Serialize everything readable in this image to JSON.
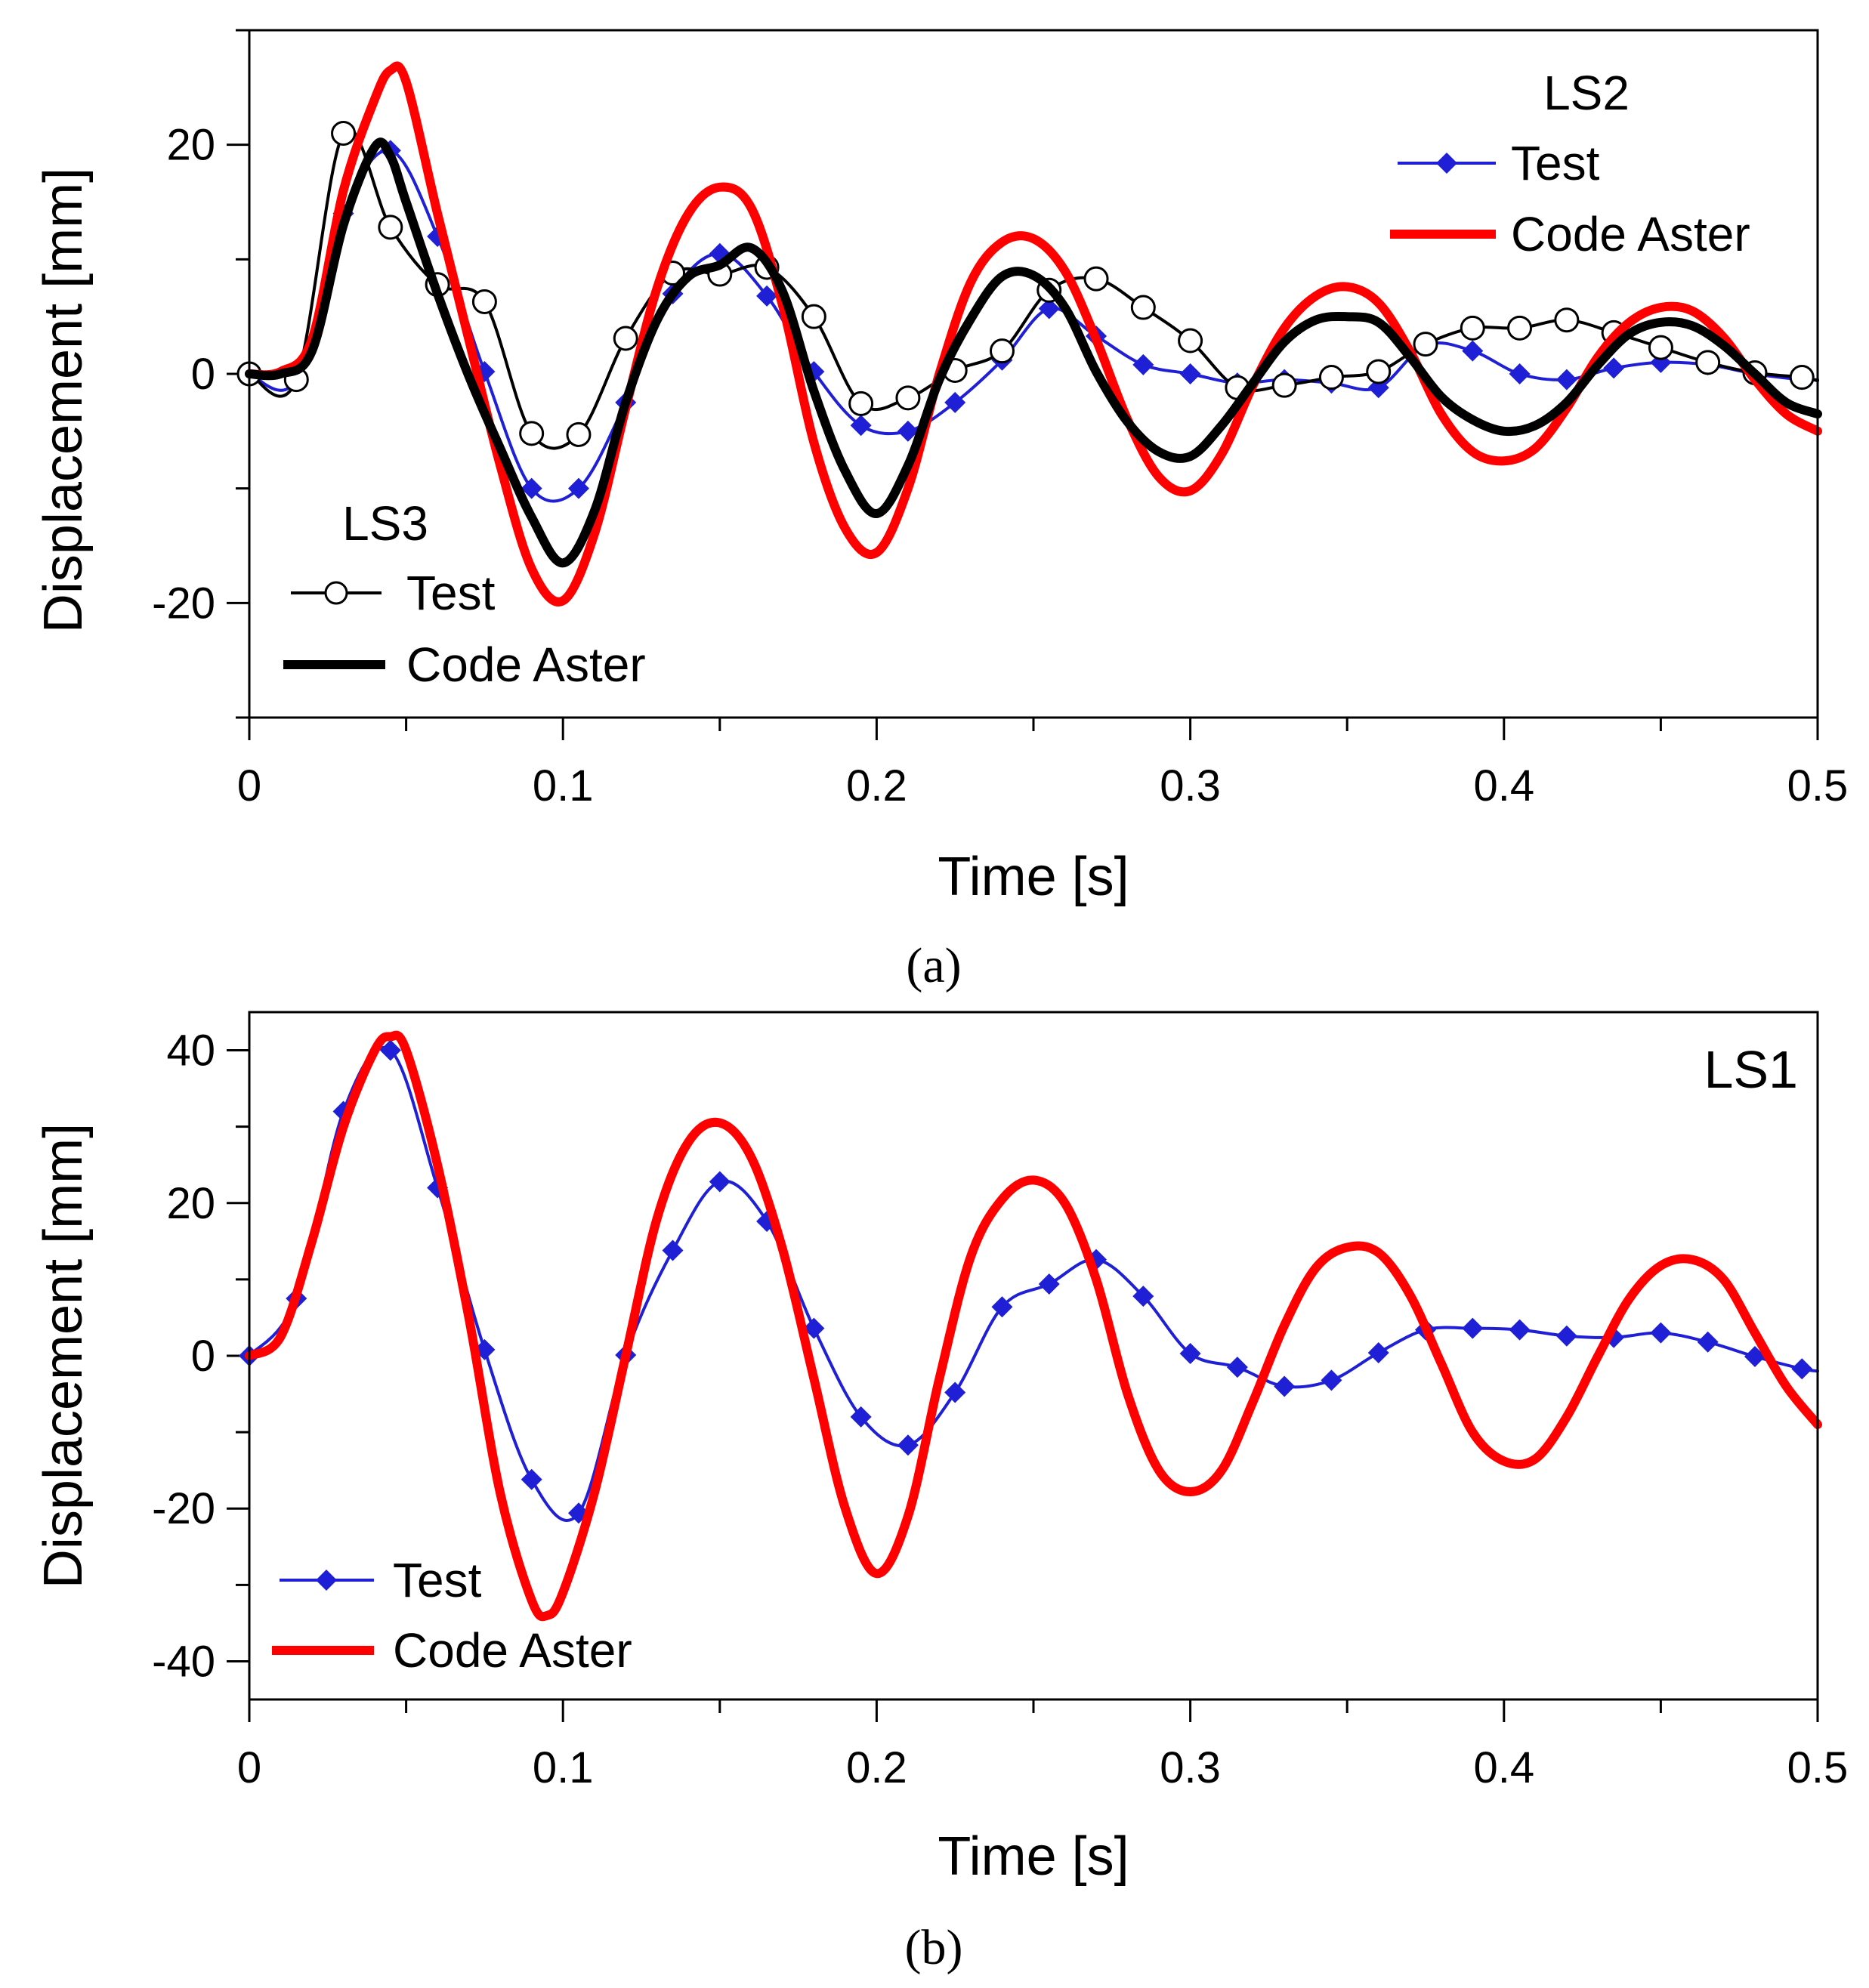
{
  "chart_data": [
    {
      "type": "line",
      "caption": "(a)",
      "xlabel": "Time  [s]",
      "ylabel": "Displacement  [mm]",
      "xlim": [
        0,
        0.5
      ],
      "ylim": [
        -30,
        30
      ],
      "xticks": [
        "0",
        "0.1",
        "0.2",
        "0.3",
        "0.4",
        "0.5"
      ],
      "yticks": [
        "20",
        "0",
        "-20"
      ],
      "legends": [
        {
          "group": "LS2",
          "entries": [
            "Test",
            "Code Aster"
          ]
        },
        {
          "group": "LS3",
          "entries": [
            "Test",
            "Code Aster"
          ]
        }
      ],
      "series": [
        {
          "name": "LS2 Test",
          "color": "#1f1fd6",
          "marker": "diamond",
          "x": [
            0,
            0.015,
            0.03,
            0.045,
            0.06,
            0.075,
            0.09,
            0.105,
            0.12,
            0.135,
            0.15,
            0.165,
            0.18,
            0.195,
            0.21,
            0.225,
            0.24,
            0.255,
            0.27,
            0.285,
            0.3,
            0.315,
            0.33,
            0.345,
            0.36,
            0.375,
            0.39,
            0.405,
            0.42,
            0.435,
            0.45,
            0.465,
            0.48,
            0.495,
            0.5
          ],
          "y": [
            0,
            -0.5,
            14,
            19.5,
            12,
            0.2,
            -10,
            -10,
            -2.5,
            7,
            10.5,
            6.8,
            0.2,
            -4.5,
            -5,
            -2.5,
            1.2,
            5.7,
            3.3,
            0.8,
            0,
            -0.8,
            -0.5,
            -0.8,
            -1.2,
            2.5,
            2,
            0,
            -0.5,
            0.5,
            1,
            0.8,
            0,
            -0.5,
            -0.5
          ]
        },
        {
          "name": "LS3 Test",
          "color": "#000000",
          "marker": "circle",
          "x": [
            0,
            0.015,
            0.03,
            0.045,
            0.06,
            0.075,
            0.09,
            0.105,
            0.12,
            0.135,
            0.15,
            0.165,
            0.18,
            0.195,
            0.21,
            0.225,
            0.24,
            0.255,
            0.27,
            0.285,
            0.3,
            0.315,
            0.33,
            0.345,
            0.36,
            0.375,
            0.39,
            0.405,
            0.42,
            0.435,
            0.45,
            0.465,
            0.48,
            0.495,
            0.5
          ],
          "y": [
            0,
            -0.5,
            21,
            12.8,
            7.8,
            6.3,
            -5.2,
            -5.3,
            3.1,
            8.8,
            8.7,
            9.3,
            5,
            -2.6,
            -2.1,
            0.3,
            2,
            7.3,
            8.3,
            5.8,
            2.9,
            -1.2,
            -1,
            -0.3,
            0.2,
            2.6,
            4,
            4,
            4.7,
            3.6,
            2.3,
            1,
            0.1,
            -0.3,
            -0.6
          ]
        },
        {
          "name": "LS2 Code Aster",
          "color": "#ff0000",
          "marker": "none",
          "x": [
            0,
            0.01,
            0.02,
            0.03,
            0.04,
            0.045,
            0.05,
            0.06,
            0.07,
            0.08,
            0.09,
            0.1,
            0.11,
            0.12,
            0.13,
            0.14,
            0.15,
            0.16,
            0.17,
            0.18,
            0.19,
            0.2,
            0.21,
            0.22,
            0.23,
            0.24,
            0.25,
            0.26,
            0.27,
            0.28,
            0.29,
            0.3,
            0.31,
            0.32,
            0.33,
            0.34,
            0.35,
            0.36,
            0.37,
            0.38,
            0.39,
            0.4,
            0.41,
            0.42,
            0.43,
            0.44,
            0.45,
            0.46,
            0.47,
            0.48,
            0.49,
            0.5
          ],
          "y": [
            0,
            0.2,
            3,
            16,
            24,
            26.5,
            25.5,
            14,
            3,
            -8,
            -17,
            -19.8,
            -14,
            -3,
            7.5,
            14,
            16.3,
            14.5,
            6,
            -6,
            -13.5,
            -15.6,
            -10,
            0,
            8,
            11.5,
            11.8,
            9,
            3,
            -4,
            -9,
            -10.2,
            -7,
            -1,
            4,
            6.8,
            7.6,
            6.2,
            2,
            -3.5,
            -6.8,
            -7.6,
            -6.5,
            -3,
            1.5,
            4.5,
            5.8,
            5.5,
            3.2,
            -0.5,
            -3.5,
            -5
          ]
        },
        {
          "name": "LS3 Code Aster",
          "color": "#000000",
          "marker": "none",
          "x": [
            0,
            0.01,
            0.02,
            0.03,
            0.04,
            0.045,
            0.05,
            0.06,
            0.07,
            0.08,
            0.09,
            0.1,
            0.11,
            0.12,
            0.13,
            0.14,
            0.15,
            0.16,
            0.17,
            0.18,
            0.19,
            0.2,
            0.21,
            0.22,
            0.23,
            0.24,
            0.25,
            0.26,
            0.27,
            0.28,
            0.29,
            0.3,
            0.31,
            0.32,
            0.33,
            0.34,
            0.35,
            0.36,
            0.37,
            0.38,
            0.39,
            0.4,
            0.41,
            0.42,
            0.43,
            0.44,
            0.45,
            0.46,
            0.47,
            0.48,
            0.49,
            0.5
          ],
          "y": [
            0,
            0,
            2,
            13,
            19.8,
            19,
            15,
            7,
            -0.2,
            -6.5,
            -12.5,
            -16.5,
            -12,
            -2.5,
            4.7,
            8.5,
            9.5,
            11,
            7.2,
            -1.5,
            -8.5,
            -12.2,
            -8,
            -0.5,
            4.8,
            8.5,
            8.6,
            5.8,
            0.2,
            -4.2,
            -6.8,
            -7.2,
            -4.5,
            -0.8,
            2.8,
            4.7,
            5,
            4.5,
            1.5,
            -2,
            -4,
            -5,
            -4.5,
            -2.5,
            0.8,
            3.5,
            4.5,
            4.2,
            2.5,
            0,
            -2.5,
            -3.5
          ]
        }
      ]
    },
    {
      "type": "line",
      "caption": "(b)",
      "xlabel": "Time  [s]",
      "ylabel": "Displacement  [mm]",
      "xlim": [
        0,
        0.5
      ],
      "ylim": [
        -45,
        45
      ],
      "xticks": [
        "0",
        "0.1",
        "0.2",
        "0.3",
        "0.4",
        "0.5"
      ],
      "yticks": [
        "40",
        "20",
        "0",
        "-20",
        "-40"
      ],
      "legends": [
        {
          "group": "LS1",
          "entries": [
            "Test",
            "Code Aster"
          ]
        }
      ],
      "series": [
        {
          "name": "LS1 Test",
          "color": "#1f1fd6",
          "marker": "diamond",
          "x": [
            0,
            0.015,
            0.03,
            0.045,
            0.06,
            0.075,
            0.09,
            0.105,
            0.12,
            0.135,
            0.15,
            0.165,
            0.18,
            0.195,
            0.21,
            0.225,
            0.24,
            0.255,
            0.27,
            0.285,
            0.3,
            0.315,
            0.33,
            0.345,
            0.36,
            0.375,
            0.39,
            0.405,
            0.42,
            0.435,
            0.45,
            0.465,
            0.48,
            0.495,
            0.5
          ],
          "y": [
            0,
            7.5,
            32,
            40,
            22,
            0.8,
            -16.2,
            -20.6,
            0.1,
            13.8,
            22.8,
            17.6,
            3.6,
            -8,
            -11.7,
            -4.8,
            6.4,
            9.4,
            12.6,
            7.8,
            0.3,
            -1.5,
            -4,
            -3.2,
            0.4,
            3.4,
            3.6,
            3.4,
            2.6,
            2.4,
            3,
            1.8,
            -0.1,
            -1.7,
            -2
          ]
        },
        {
          "name": "LS1 Code Aster",
          "color": "#ff0000",
          "marker": "none",
          "x": [
            0,
            0.01,
            0.02,
            0.03,
            0.04,
            0.045,
            0.05,
            0.06,
            0.07,
            0.08,
            0.09,
            0.095,
            0.1,
            0.11,
            0.12,
            0.13,
            0.14,
            0.15,
            0.16,
            0.17,
            0.18,
            0.19,
            0.2,
            0.21,
            0.22,
            0.23,
            0.24,
            0.25,
            0.26,
            0.27,
            0.28,
            0.29,
            0.3,
            0.31,
            0.32,
            0.33,
            0.34,
            0.35,
            0.36,
            0.37,
            0.38,
            0.39,
            0.4,
            0.41,
            0.42,
            0.43,
            0.44,
            0.45,
            0.46,
            0.47,
            0.48,
            0.49,
            0.5
          ],
          "y": [
            0,
            2.5,
            15,
            30,
            40,
            41.8,
            40,
            25,
            5,
            -18,
            -32,
            -34,
            -31,
            -18,
            0,
            18,
            28,
            30.5,
            26,
            14,
            -3,
            -20,
            -28.5,
            -21,
            -3,
            13,
            20.5,
            23,
            20,
            10,
            -5,
            -15,
            -17.8,
            -15,
            -6,
            4,
            11.5,
            14.2,
            13.5,
            8,
            -1,
            -10,
            -13.8,
            -13.5,
            -8,
            0,
            7.5,
            11.8,
            12.6,
            10,
            3,
            -4,
            -9
          ]
        }
      ]
    }
  ]
}
